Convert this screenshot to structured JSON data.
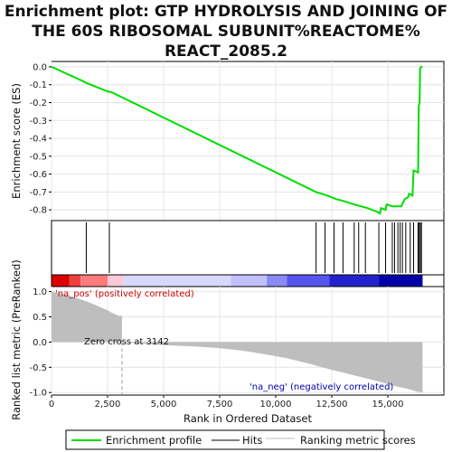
{
  "chart_data": {
    "type": "line",
    "title_lines": [
      "Enrichment plot: GTP HYDROLYSIS AND JOINING OF",
      "THE 60S RIBOSOMAL SUBUNIT%REACTOME%",
      "REACT_2085.2"
    ],
    "es_panel": {
      "ylabel": "Enrichment score (ES)",
      "ylim": [
        -0.86,
        0.03
      ],
      "yticks": [
        "0.0",
        "-0.1",
        "-0.2",
        "-0.3",
        "-0.4",
        "-0.5",
        "-0.6",
        "-0.7",
        "-0.8"
      ],
      "ytick_values": [
        0,
        -0.1,
        -0.2,
        -0.3,
        -0.4,
        -0.5,
        -0.6,
        -0.7,
        -0.8
      ],
      "series": [
        {
          "name": "Enrichment profile",
          "color": "#00dd00",
          "points": [
            [
              0,
              0
            ],
            [
              1400,
              -0.08
            ],
            [
              1550,
              -0.09
            ],
            [
              2550,
              -0.14
            ],
            [
              2650,
              -0.14
            ],
            [
              11800,
              -0.7
            ],
            [
              12300,
              -0.72
            ],
            [
              12700,
              -0.74
            ],
            [
              13000,
              -0.75
            ],
            [
              13500,
              -0.77
            ],
            [
              13800,
              -0.78
            ],
            [
              14100,
              -0.79
            ],
            [
              14500,
              -0.81
            ],
            [
              14650,
              -0.82
            ],
            [
              14700,
              -0.79
            ],
            [
              14900,
              -0.8
            ],
            [
              14950,
              -0.77
            ],
            [
              15200,
              -0.78
            ],
            [
              15400,
              -0.78
            ],
            [
              15600,
              -0.78
            ],
            [
              15750,
              -0.74
            ],
            [
              15900,
              -0.73
            ],
            [
              15950,
              -0.71
            ],
            [
              16100,
              -0.72
            ],
            [
              16150,
              -0.58
            ],
            [
              16350,
              -0.59
            ],
            [
              16380,
              -0.22
            ],
            [
              16420,
              -0.2
            ],
            [
              16440,
              -0.01
            ],
            [
              16500,
              0.0
            ],
            [
              16550,
              0.0
            ]
          ]
        }
      ]
    },
    "hits": [
      1550,
      2580,
      11800,
      12200,
      12600,
      13000,
      13500,
      13700,
      14000,
      14600,
      14900,
      15200,
      15300,
      15450,
      15550,
      15650,
      15800,
      16000,
      16150,
      16350,
      16400,
      16450,
      16500
    ],
    "xlim": [
      0,
      17500
    ],
    "ranked_panel": {
      "ylabel": "Ranked list metric (PreRanked)",
      "ylim": [
        -1.05,
        1.1
      ],
      "yticks": [
        "1.0",
        "0.5",
        "0.0",
        "-0.5",
        "-1.0"
      ],
      "ytick_values": [
        1.0,
        0.5,
        0.0,
        -0.5,
        -1.0
      ],
      "profile": [
        [
          0,
          1.0
        ],
        [
          200,
          0.98
        ],
        [
          500,
          0.95
        ],
        [
          800,
          0.92
        ],
        [
          1200,
          0.86
        ],
        [
          1600,
          0.8
        ],
        [
          2000,
          0.73
        ],
        [
          2400,
          0.65
        ],
        [
          2700,
          0.58
        ],
        [
          3000,
          0.52
        ],
        [
          3142,
          0.0
        ],
        [
          5000,
          -0.06
        ],
        [
          6500,
          -0.09
        ],
        [
          7500,
          -0.12
        ],
        [
          8500,
          -0.17
        ],
        [
          9500,
          -0.24
        ],
        [
          10500,
          -0.32
        ],
        [
          11500,
          -0.43
        ],
        [
          12500,
          -0.55
        ],
        [
          13500,
          -0.66
        ],
        [
          14500,
          -0.77
        ],
        [
          15300,
          -0.87
        ],
        [
          15900,
          -0.93
        ],
        [
          16300,
          -0.98
        ],
        [
          16550,
          -1.0
        ]
      ],
      "zero_cross": 3142,
      "zero_cross_label": "Zero cross at 3142",
      "pos_label": "'na_pos' (positively correlated)",
      "neg_label": "'na_neg' (negatively correlated)",
      "fill_color": "#bebebe"
    },
    "xlabel": "Rank in Ordered Dataset",
    "xticks": [
      "0",
      "2,500",
      "5,000",
      "7,500",
      "10,000",
      "12,500",
      "15,000"
    ],
    "xtick_values": [
      0,
      2500,
      5000,
      7500,
      10000,
      12500,
      15000
    ],
    "legend": {
      "placement": "bottom",
      "entries": [
        {
          "label": "Enrichment profile",
          "color": "#00dd00",
          "kind": "line"
        },
        {
          "label": "Hits",
          "color": "#000000",
          "kind": "line"
        },
        {
          "label": "Ranking metric scores",
          "color": "#bebebe",
          "kind": "line"
        }
      ]
    },
    "colorbar": [
      {
        "from": 0,
        "to": 800,
        "color": "#dd0000"
      },
      {
        "from": 800,
        "to": 1300,
        "color": "#f04040"
      },
      {
        "from": 1300,
        "to": 2500,
        "color": "#ff7b7b"
      },
      {
        "from": 2500,
        "to": 3200,
        "color": "#ffc8d8"
      },
      {
        "from": 3200,
        "to": 8000,
        "color": "#d8d8ff"
      },
      {
        "from": 8000,
        "to": 9600,
        "color": "#c0c0ff"
      },
      {
        "from": 9600,
        "to": 10500,
        "color": "#8a8af5"
      },
      {
        "from": 10500,
        "to": 12400,
        "color": "#5555ee"
      },
      {
        "from": 12400,
        "to": 14600,
        "color": "#2222cc"
      },
      {
        "from": 14600,
        "to": 16550,
        "color": "#0000a8"
      }
    ]
  }
}
